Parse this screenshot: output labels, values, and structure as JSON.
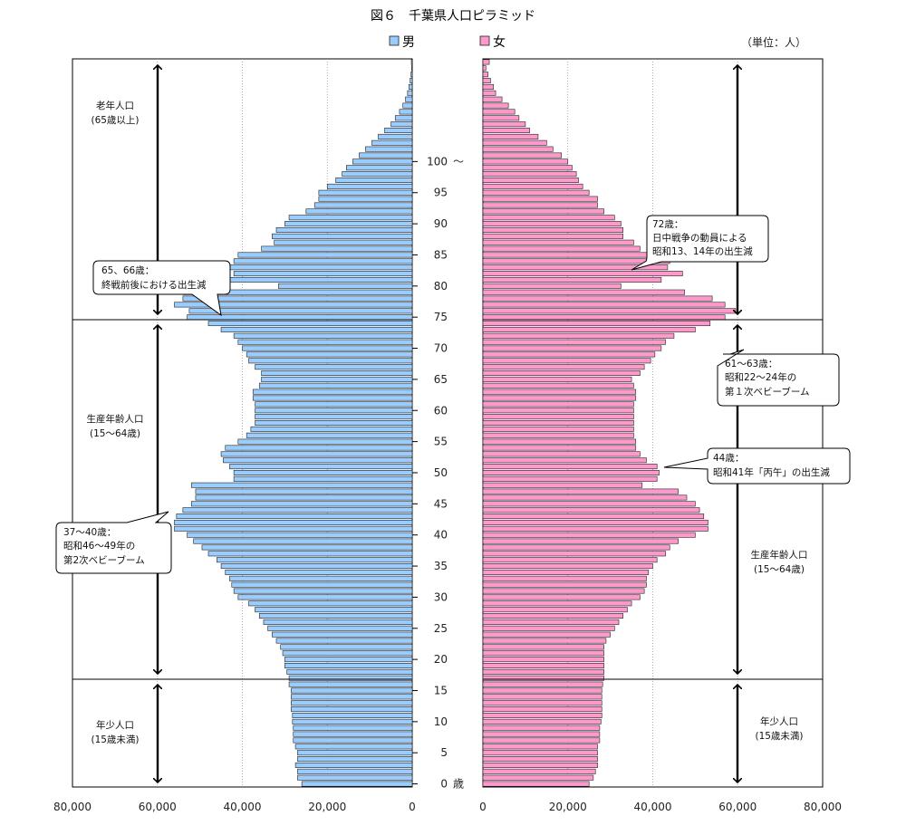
{
  "title": "図６　千葉県人口ピラミッド",
  "unit": "（単位：人）",
  "legend": {
    "male": "男",
    "female": "女"
  },
  "colors": {
    "male": "#99ccff",
    "female": "#ff99cc",
    "edge": "#222222"
  },
  "age_suffix": "歳",
  "age_top_suffix": "〜",
  "groups": {
    "elderly": {
      "name": "老年人口",
      "range": "(65歳以上)"
    },
    "working": {
      "name": "生産年齢人口",
      "range": "(15〜64歳)"
    },
    "young": {
      "name": "年少人口",
      "range": "(15歳未満)"
    }
  },
  "callouts": [
    {
      "id": "c65",
      "lines": [
        "65、66歳：",
        "終戦前後における出生減"
      ]
    },
    {
      "id": "c72",
      "lines": [
        "72歳：",
        "日中戦争の動員による",
        "昭和13、14年の出生減"
      ]
    },
    {
      "id": "c61",
      "lines": [
        "61〜63歳：",
        "昭和22〜24年の",
        "第１次ベビーブーム"
      ]
    },
    {
      "id": "c44",
      "lines": [
        "44歳：",
        "昭和41年「丙午」の出生減"
      ]
    },
    {
      "id": "c37",
      "lines": [
        "37〜40歳：",
        "昭和46〜49年の",
        "第2次ベビーブーム"
      ]
    }
  ],
  "chart_data": {
    "type": "bar",
    "orientation": "horizontal",
    "age_labels": [
      "0",
      "5",
      "10",
      "15",
      "20",
      "25",
      "30",
      "35",
      "40",
      "45",
      "50",
      "55",
      "60",
      "65",
      "70",
      "75",
      "80",
      "85",
      "90",
      "95",
      "100"
    ],
    "x_ticks_male": [
      "80,000",
      "60,000",
      "40,000",
      "20,000",
      "0"
    ],
    "x_ticks_female": [
      "0",
      "20,000",
      "40,000",
      "60,000",
      "80,000"
    ],
    "xlim": [
      0,
      80000
    ],
    "series": [
      {
        "name": "男",
        "values": [
          26000,
          27000,
          27000,
          27500,
          27000,
          27000,
          27500,
          28000,
          28000,
          28000,
          28200,
          28200,
          28500,
          28500,
          28500,
          28500,
          29000,
          29000,
          29500,
          30000,
          30000,
          30500,
          31000,
          32000,
          33000,
          34000,
          35000,
          36000,
          37000,
          38500,
          41000,
          42000,
          42500,
          43000,
          44000,
          45000,
          46000,
          48000,
          49500,
          51500,
          53000,
          56000,
          56000,
          55500,
          54000,
          52000,
          51000,
          51000,
          52000,
          42000,
          42000,
          43000,
          44500,
          45000,
          44000,
          41000,
          39000,
          38000,
          37000,
          37000,
          37000,
          37000,
          37500,
          37500,
          36000,
          35500,
          35500,
          37000,
          38500,
          39000,
          40000,
          41000,
          42000,
          45000,
          48000,
          53000,
          52500,
          56000,
          54000,
          54000,
          31500,
          45000,
          42000,
          44000,
          42000,
          41000,
          35500,
          32500,
          33000,
          32000,
          30000,
          29000,
          25000,
          23000,
          22000,
          22000,
          20000,
          18000,
          16500,
          15500,
          14000,
          12500,
          11000,
          9500,
          8000,
          6500,
          5000,
          4000,
          3000,
          2200,
          1600,
          1100,
          800,
          500,
          300,
          150,
          200
        ]
      },
      {
        "name": "女",
        "values": [
          25000,
          26000,
          26500,
          27000,
          27000,
          27000,
          27000,
          27500,
          27500,
          27500,
          27800,
          28000,
          28000,
          28000,
          28000,
          28000,
          28200,
          28500,
          28500,
          28500,
          28500,
          28500,
          28500,
          29000,
          30000,
          31000,
          32000,
          33000,
          34000,
          35000,
          37000,
          38000,
          38500,
          38500,
          39000,
          40000,
          41000,
          43000,
          44000,
          46000,
          50000,
          53000,
          53000,
          52000,
          51000,
          50000,
          48000,
          46000,
          37500,
          41000,
          41500,
          41000,
          38500,
          37000,
          36000,
          36000,
          35500,
          35500,
          35500,
          35500,
          35500,
          35500,
          36000,
          36000,
          35500,
          35000,
          37000,
          38000,
          39500,
          40500,
          42000,
          43000,
          45000,
          50000,
          53500,
          57000,
          59500,
          57000,
          54000,
          47500,
          32500,
          42000,
          47000,
          43500,
          44000,
          40000,
          37000,
          35500,
          33000,
          33000,
          32500,
          31000,
          28500,
          27000,
          27000,
          25000,
          23500,
          22500,
          22000,
          21000,
          20000,
          18500,
          16500,
          15000,
          13000,
          11000,
          10000,
          8500,
          7500,
          6000,
          4500,
          3000,
          2500,
          1800,
          1200,
          700,
          1500
        ]
      }
    ]
  }
}
